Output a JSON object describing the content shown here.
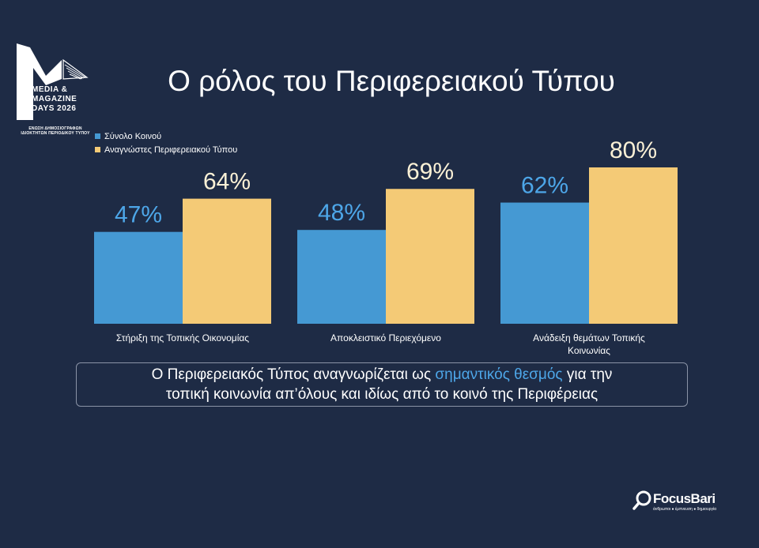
{
  "logo": {
    "lines": [
      "MEDIA &",
      "MAGAZINE",
      "DAYS 2026"
    ],
    "sub1": "ΕΝΩΣΗ ΔΗΜΟΣΙΟΓΡΑΦΩΝ",
    "sub2": "ΙΔΙΟΚΤΗΤΩΝ ΠΕΡΙΟΔΙΚΟΥ ΤΥΠΟΥ"
  },
  "title": "Ο ρόλος του Περιφερειακού Τύπου",
  "colors": {
    "background": "#1e2b45",
    "series1": "#4599d3",
    "series2": "#f4ca76",
    "label1": "#4da6e8",
    "label2": "#fbf1d6",
    "highlight": "#4da6e8"
  },
  "chart_data": {
    "type": "bar",
    "categories": [
      [
        "Στήριξη της Τοπικής Οικονομίας"
      ],
      [
        "Αποκλειστικό Περιεχόμενο"
      ],
      [
        "Ανάδειξη θεμάτων Τοπικής",
        "Κοινωνίας"
      ]
    ],
    "series": [
      {
        "name": "Σύνολο Κοινού",
        "values": [
          47,
          48,
          62
        ],
        "labels": [
          "47%",
          "48%",
          "62%"
        ]
      },
      {
        "name": "Αναγνώστες Περιφερειακού Τύπου",
        "values": [
          64,
          69,
          80
        ],
        "labels": [
          "64%",
          "69%",
          "80%"
        ]
      }
    ],
    "ylim": [
      0,
      100
    ],
    "legend_position": "top-left",
    "grid": false
  },
  "callout": {
    "line1_before": "Ο Περιφερειακός Τύπος αναγνωρίζεται ως ",
    "line1_highlight": "σημαντικός θεσμός",
    "line1_after": " για την",
    "line2": "τοπική κοινωνία απ’όλους και ιδίως από το κοινό της Περιφέρειας"
  },
  "footer": {
    "brand": "FocusBari",
    "tagline": "άνθρωποι ● έμπνευση ● δημιουργία"
  }
}
